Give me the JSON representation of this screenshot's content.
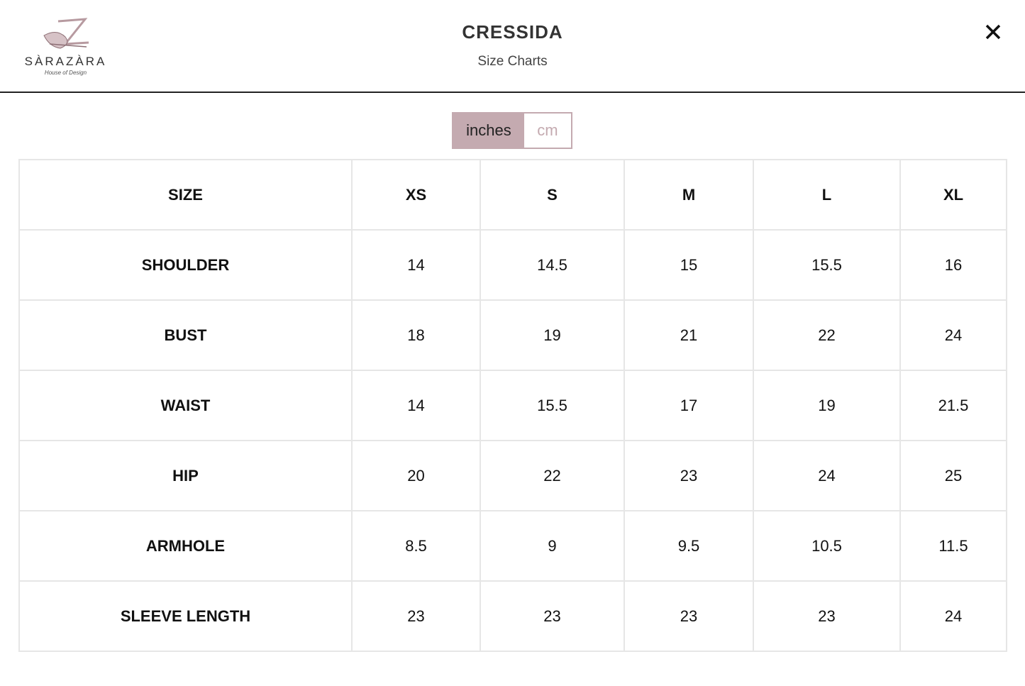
{
  "header": {
    "logo": {
      "name": "SÀRAZÀRA",
      "tagline": "House of Design"
    },
    "title": "CRESSIDA",
    "subtitle": "Size Charts"
  },
  "unit_toggle": {
    "options": [
      "inches",
      "cm"
    ],
    "selected_index": 0
  },
  "table": {
    "columns": [
      "SIZE",
      "XS",
      "S",
      "M",
      "L",
      "XL"
    ],
    "rows": [
      [
        "SHOULDER",
        14,
        14.5,
        15,
        15.5,
        16
      ],
      [
        "BUST",
        18,
        19,
        21,
        22,
        24
      ],
      [
        "WAIST",
        14,
        15.5,
        17,
        19,
        21.5
      ],
      [
        "HIP",
        20,
        22,
        23,
        24,
        25
      ],
      [
        "ARMHOLE",
        8.5,
        9,
        9.5,
        10.5,
        11.5
      ],
      [
        "SLEEVE LENGTH",
        23,
        23,
        23,
        23,
        24
      ]
    ]
  }
}
